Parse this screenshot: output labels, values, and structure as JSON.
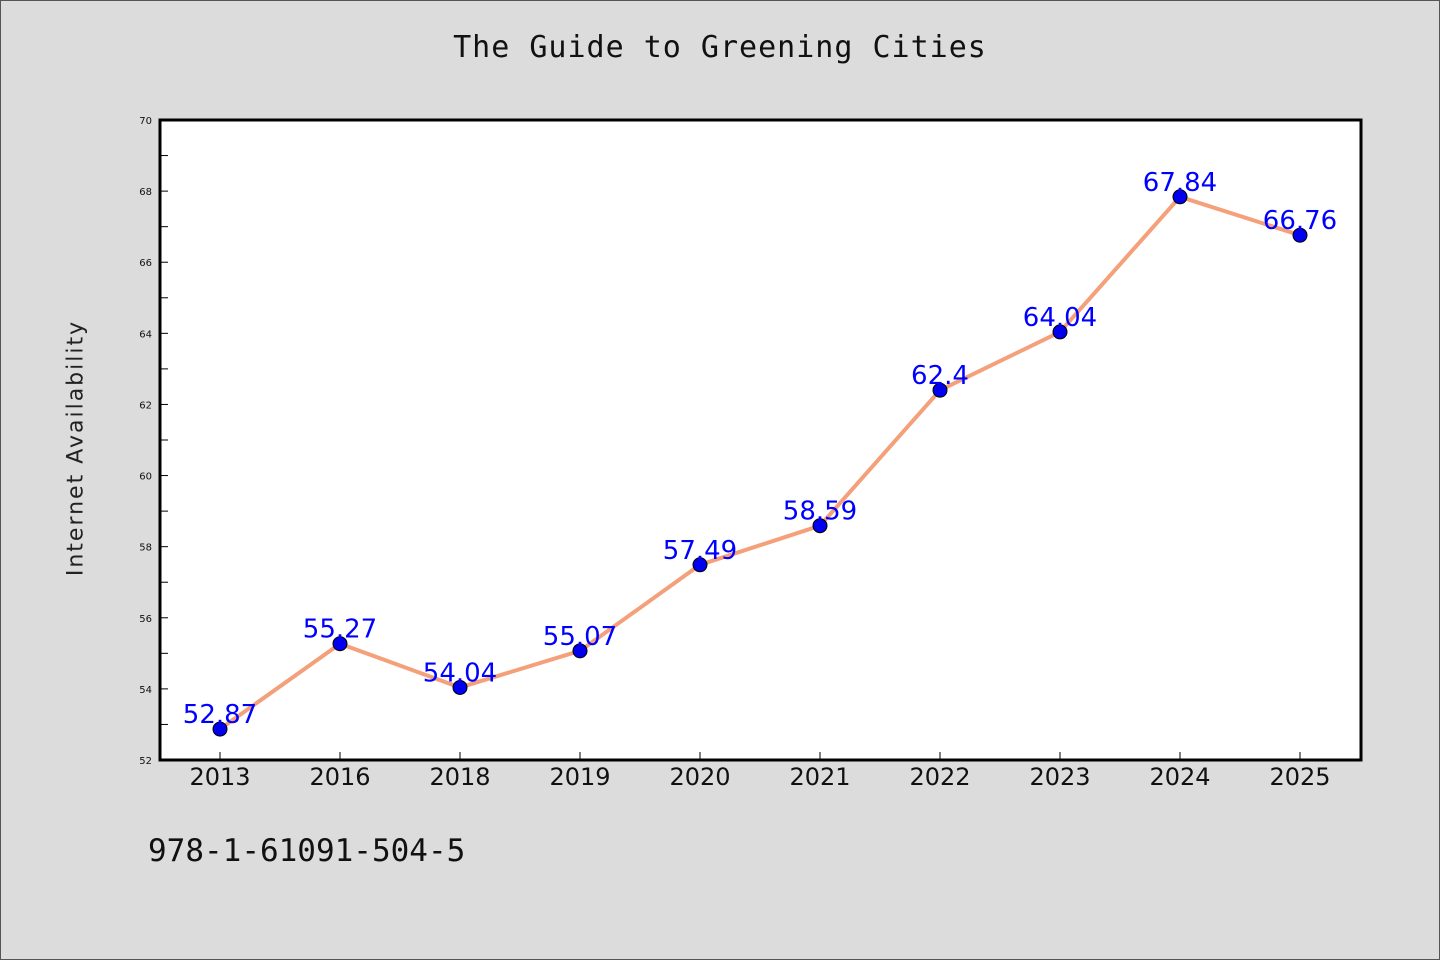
{
  "title": "The Guide to Greening Cities",
  "isbn": "978-1-61091-504-5",
  "colors": {
    "background": "#dcdcdc",
    "plot_background": "#ffffff",
    "line": "#f4a07a",
    "marker": "#0000ee",
    "label": "#0000ff"
  },
  "chart_data": {
    "type": "line",
    "title": "The Guide to Greening Cities",
    "xlabel": "",
    "ylabel": "Internet Availability",
    "categories": [
      "2013",
      "2016",
      "2018",
      "2019",
      "2020",
      "2021",
      "2022",
      "2023",
      "2024",
      "2025"
    ],
    "series": [
      {
        "values": [
          52.87,
          55.27,
          54.04,
          55.07,
          57.49,
          58.59,
          62.4,
          64.04,
          67.84,
          66.76
        ],
        "labels": [
          "52.87",
          "55.27",
          "54.04",
          "55.07",
          "57.49",
          "58.59",
          "62.4",
          "64.04",
          "67.84",
          "66.76"
        ]
      }
    ],
    "ylim": [
      52,
      70
    ],
    "yticks": [
      52,
      54,
      56,
      58,
      60,
      62,
      64,
      66,
      68,
      70
    ],
    "grid": false,
    "legend": "none"
  }
}
